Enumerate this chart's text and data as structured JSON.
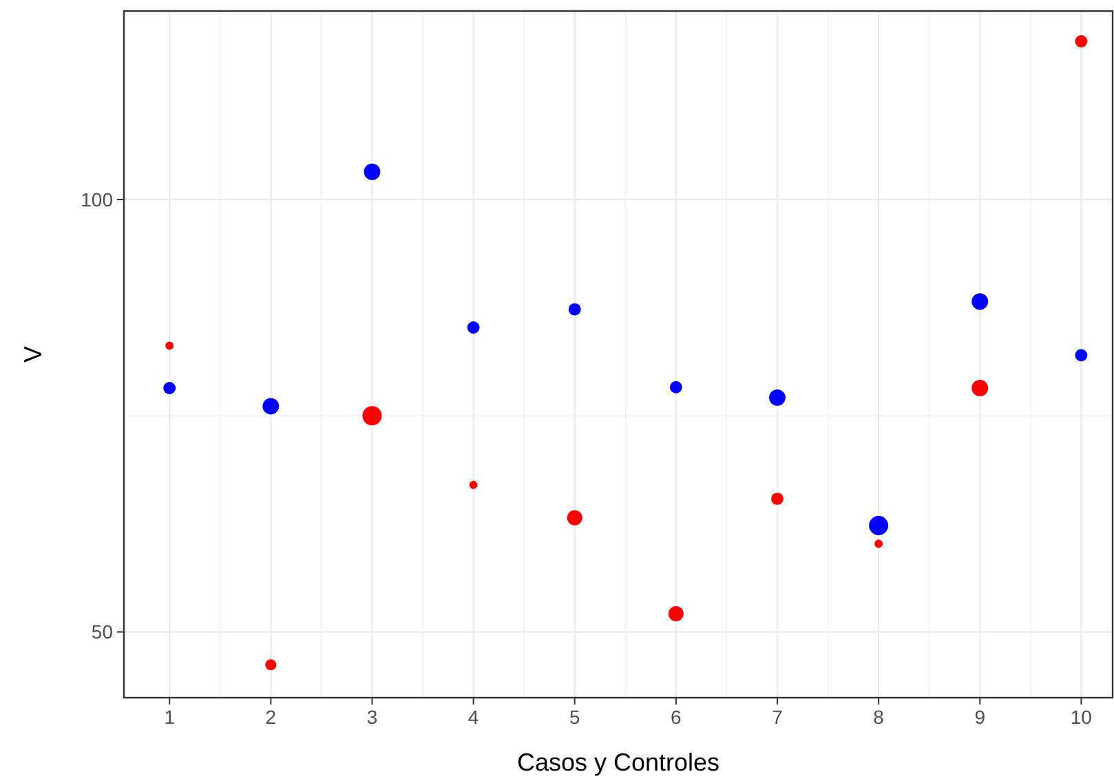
{
  "chart_data": {
    "type": "bubble",
    "xlabel": "Casos y Controles",
    "ylabel": "V",
    "x": [
      1,
      2,
      3,
      4,
      5,
      6,
      7,
      8,
      9,
      10
    ],
    "xlim": [
      0.55,
      10.31
    ],
    "xticks": [
      1,
      2,
      3,
      4,
      5,
      6,
      7,
      8,
      9,
      10
    ],
    "ylim": [
      42.4,
      121.8
    ],
    "yticks": [
      50,
      100
    ],
    "grid": true,
    "marker": "circle",
    "series": [
      {
        "color": "#0000ff",
        "values": [
          78.2,
          76.1,
          103.2,
          85.2,
          87.3,
          78.3,
          77.1,
          62.3,
          88.2,
          82.0
        ],
        "sizes": [
          0.41,
          0.73,
          0.73,
          0.41,
          0.41,
          0.41,
          0.73,
          1,
          0.73,
          0.41
        ]
      },
      {
        "color": "#ff0000",
        "values": [
          83.1,
          46.2,
          75.0,
          67.0,
          63.2,
          52.1,
          65.4,
          60.2,
          78.2,
          118.3
        ],
        "sizes": [
          0.18,
          0.33,
          1,
          0.18,
          0.62,
          0.62,
          0.41,
          0.18,
          0.73,
          0.41
        ]
      }
    ]
  }
}
